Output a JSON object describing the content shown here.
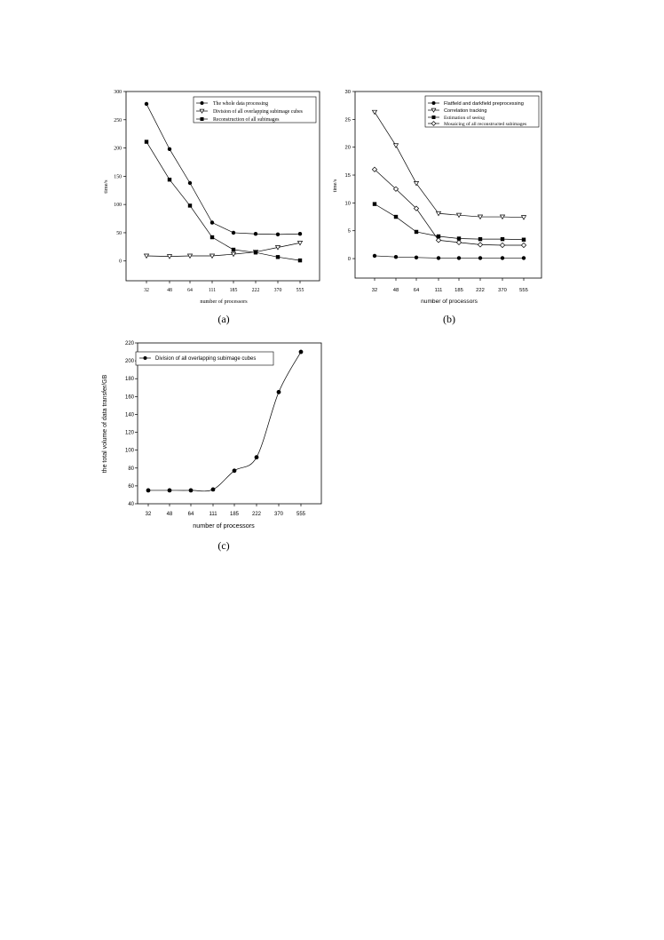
{
  "chart_data": [
    {
      "id": "a",
      "type": "line",
      "caption": "(a)",
      "xlabel": "number of processors",
      "ylabel": "time/s",
      "categories": [
        "32",
        "48",
        "64",
        "111",
        "185",
        "222",
        "370",
        "555"
      ],
      "yticks": [
        0,
        50,
        100,
        150,
        200,
        250,
        300
      ],
      "ylim": [
        -35,
        300
      ],
      "legend_position": "top-right",
      "font": "serif",
      "series": [
        {
          "name": "The whole data processing",
          "marker": "circle-filled",
          "values": [
            278,
            198,
            138,
            68,
            50,
            48,
            47,
            48
          ]
        },
        {
          "name": "Division of all overlapping subimage cubes",
          "marker": "triangle-down-open",
          "values": [
            9,
            8,
            9,
            9,
            12,
            16,
            24,
            32
          ]
        },
        {
          "name": "Reconstruction of all subimages",
          "marker": "square-filled",
          "values": [
            211,
            144,
            98,
            42,
            20,
            15,
            7,
            1
          ]
        }
      ]
    },
    {
      "id": "b",
      "type": "line",
      "caption": "(b)",
      "xlabel": "number of processors",
      "ylabel": "time/s",
      "categories": [
        "32",
        "48",
        "64",
        "111",
        "185",
        "222",
        "370",
        "555"
      ],
      "yticks": [
        0,
        5,
        10,
        15,
        20,
        25,
        30
      ],
      "ylim": [
        -3.5,
        30
      ],
      "legend_position": "top-right",
      "font": "mixed",
      "series": [
        {
          "name": "Flatfield and darkfield preprocessing",
          "marker": "circle-filled",
          "values": [
            0.5,
            0.3,
            0.2,
            0.1,
            0.1,
            0.1,
            0.1,
            0.1
          ]
        },
        {
          "name": "Correlation tracking",
          "marker": "triangle-down-open",
          "values": [
            26.3,
            20.3,
            13.5,
            8.1,
            7.8,
            7.5,
            7.5,
            7.4
          ]
        },
        {
          "name": "Estimation of seeing",
          "marker": "square-filled",
          "values": [
            9.8,
            7.5,
            4.8,
            4.0,
            3.6,
            3.5,
            3.5,
            3.4
          ]
        },
        {
          "name": "Mosaicing of all reconstructed subimages",
          "marker": "diamond-open",
          "values": [
            16.0,
            12.5,
            9.0,
            3.3,
            2.9,
            2.5,
            2.4,
            2.4
          ]
        }
      ]
    },
    {
      "id": "c",
      "type": "line",
      "caption": "(c)",
      "xlabel": "number of processors",
      "ylabel": "the total volume of data transfer/GB",
      "categories": [
        "32",
        "48",
        "64",
        "111",
        "185",
        "222",
        "370",
        "555"
      ],
      "yticks": [
        40,
        60,
        80,
        100,
        120,
        140,
        160,
        180,
        200,
        220
      ],
      "ylim": [
        40,
        220
      ],
      "legend_position": "top-left",
      "font": "sans",
      "smooth": true,
      "series": [
        {
          "name": "Division of all overlapping subimage cubes",
          "marker": "circle-filled",
          "values": [
            55,
            55,
            55,
            56,
            77,
            92,
            165,
            210
          ]
        }
      ]
    }
  ]
}
